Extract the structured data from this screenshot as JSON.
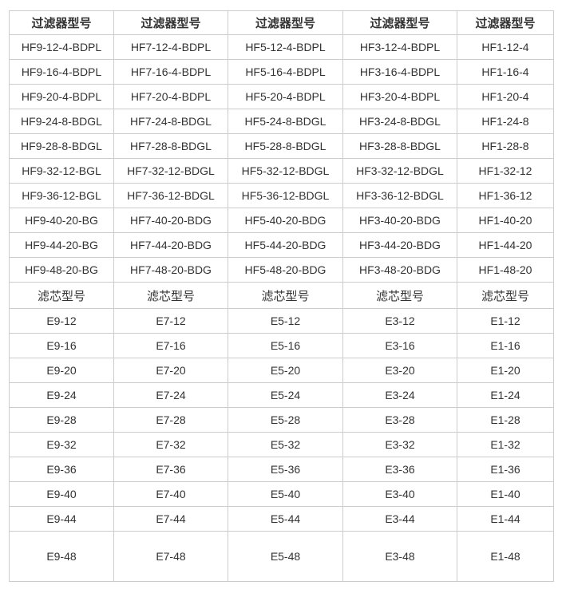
{
  "table": {
    "filter_header_label": "过滤器型号",
    "element_header_label": "滤芯型号",
    "filter_rows": [
      [
        "HF9-12-4-BDPL",
        "HF7-12-4-BDPL",
        "HF5-12-4-BDPL",
        "HF3-12-4-BDPL",
        "HF1-12-4"
      ],
      [
        "HF9-16-4-BDPL",
        "HF7-16-4-BDPL",
        "HF5-16-4-BDPL",
        "HF3-16-4-BDPL",
        "HF1-16-4"
      ],
      [
        "HF9-20-4-BDPL",
        "HF7-20-4-BDPL",
        "HF5-20-4-BDPL",
        "HF3-20-4-BDPL",
        "HF1-20-4"
      ],
      [
        "HF9-24-8-BDGL",
        "HF7-24-8-BDGL",
        "HF5-24-8-BDGL",
        "HF3-24-8-BDGL",
        "HF1-24-8"
      ],
      [
        "HF9-28-8-BDGL",
        "HF7-28-8-BDGL",
        "HF5-28-8-BDGL",
        "HF3-28-8-BDGL",
        "HF1-28-8"
      ],
      [
        "HF9-32-12-BGL",
        "HF7-32-12-BDGL",
        "HF5-32-12-BDGL",
        "HF3-32-12-BDGL",
        "HF1-32-12"
      ],
      [
        "HF9-36-12-BGL",
        "HF7-36-12-BDGL",
        "HF5-36-12-BDGL",
        "HF3-36-12-BDGL",
        "HF1-36-12"
      ],
      [
        "HF9-40-20-BG",
        "HF7-40-20-BDG",
        "HF5-40-20-BDG",
        "HF3-40-20-BDG",
        "HF1-40-20"
      ],
      [
        "HF9-44-20-BG",
        "HF7-44-20-BDG",
        "HF5-44-20-BDG",
        "HF3-44-20-BDG",
        "HF1-44-20"
      ],
      [
        "HF9-48-20-BG",
        "HF7-48-20-BDG",
        "HF5-48-20-BDG",
        "HF3-48-20-BDG",
        "HF1-48-20"
      ]
    ],
    "element_rows": [
      [
        "E9-12",
        "E7-12",
        "E5-12",
        "E3-12",
        "E1-12"
      ],
      [
        "E9-16",
        "E7-16",
        "E5-16",
        "E3-16",
        "E1-16"
      ],
      [
        "E9-20",
        "E7-20",
        "E5-20",
        "E3-20",
        "E1-20"
      ],
      [
        "E9-24",
        "E7-24",
        "E5-24",
        "E3-24",
        "E1-24"
      ],
      [
        "E9-28",
        "E7-28",
        "E5-28",
        "E3-28",
        "E1-28"
      ],
      [
        "E9-32",
        "E7-32",
        "E5-32",
        "E3-32",
        "E1-32"
      ],
      [
        "E9-36",
        "E7-36",
        "E5-36",
        "E3-36",
        "E1-36"
      ],
      [
        "E9-40",
        "E7-40",
        "E5-40",
        "E3-40",
        "E1-40"
      ],
      [
        "E9-44",
        "E7-44",
        "E5-44",
        "E3-44",
        "E1-44"
      ],
      [
        "E9-48",
        "E7-48",
        "E5-48",
        "E3-48",
        "E1-48"
      ]
    ],
    "colors": {
      "border": "#cccccc",
      "text": "#333333",
      "background": "#ffffff"
    }
  }
}
